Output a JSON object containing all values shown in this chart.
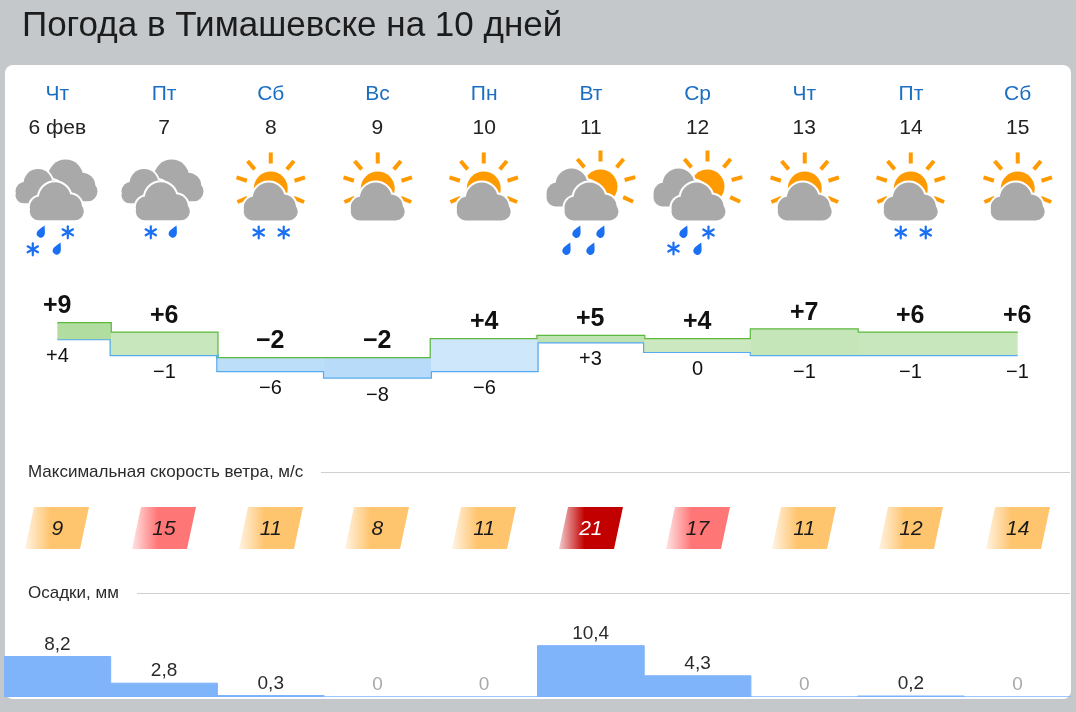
{
  "chart_data": [
    {
      "type": "step",
      "title": "Погода в Тимашевске на 10 дней",
      "categories": [
        "Чт\n6 фев",
        "Пт\n7",
        "Сб\n8",
        "Вс\n9",
        "Пн\n10",
        "Вт\n11",
        "Ср\n12",
        "Чт\n13",
        "Пт\n14",
        "Сб\n15"
      ],
      "series": [
        {
          "color": "#5cb83b",
          "values": [
            9,
            6,
            -2,
            -2,
            4,
            5,
            4,
            7,
            6,
            6
          ],
          "value_labels": [
            "+9",
            "+6",
            "−2",
            "−2",
            "+4",
            "+5",
            "+4",
            "+7",
            "+6",
            "+6"
          ],
          "lower": [
            4,
            -1,
            -6,
            -8,
            -6,
            3,
            0,
            -1,
            -1,
            -1
          ],
          "upper": [
            9,
            6,
            -2,
            -2,
            4,
            5,
            4,
            7,
            6,
            6
          ]
        },
        {
          "color": "#55aaf0",
          "values": [
            4,
            -1,
            -6,
            -8,
            -6,
            3,
            0,
            -1,
            -1,
            -1
          ],
          "value_labels": [
            "+4",
            "−1",
            "−6",
            "−8",
            "−6",
            "+3",
            "0",
            "−1",
            "−1",
            "−1"
          ]
        }
      ]
    },
    {
      "type": "other",
      "title": "Максимальная скорость ветра, м/с",
      "values": [
        9,
        15,
        11,
        8,
        11,
        21,
        17,
        11,
        12,
        14
      ],
      "colors": [
        "#ffc46e",
        "#ff7676",
        "#ffc46e",
        "#ffc46e",
        "#ffc46e",
        "#c20000",
        "#ff7676",
        "#ffc46e",
        "#ffc46e",
        "#ffc46e"
      ],
      "data_labels": true
    },
    {
      "type": "bar",
      "title": "Осадки, мм",
      "categories": [
        null,
        null,
        null,
        null,
        null,
        null,
        null,
        null,
        null,
        null
      ],
      "values": [
        8.2,
        2.8,
        0.3,
        0,
        0,
        10.4,
        4.3,
        0,
        0.2,
        0
      ],
      "value_labels": [
        "8,2",
        "2,8",
        "0,3",
        "0",
        "0",
        "10,4",
        "4,3",
        "0",
        "0,2",
        "0"
      ],
      "color": "#7fb3fa"
    }
  ]
}
